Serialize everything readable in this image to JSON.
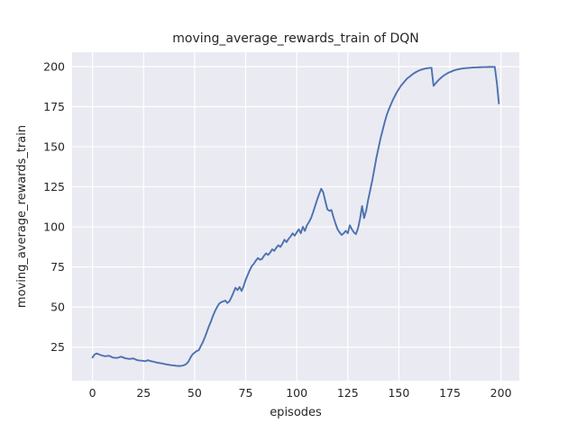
{
  "chart_data": {
    "type": "line",
    "title": "moving_average_rewards_train of DQN",
    "xlabel": "episodes",
    "ylabel": "moving_average_rewards_train",
    "xlim": [
      -10,
      209
    ],
    "ylim": [
      4,
      209
    ],
    "x_ticks": [
      0,
      25,
      50,
      75,
      100,
      125,
      150,
      175,
      200
    ],
    "y_ticks": [
      25,
      50,
      75,
      100,
      125,
      150,
      175,
      200
    ],
    "grid": true,
    "legend": "none",
    "style": "seaborn-darkgrid",
    "colors": {
      "line": "#4c72b0",
      "plot_background": "#eaeaf2",
      "grid": "#ffffff",
      "figure_background": "#ffffff",
      "text": "#262626"
    },
    "series": [
      {
        "name": "moving_average_rewards_train",
        "x_start": 0,
        "x_step": 1,
        "values": [
          18.5,
          20.3,
          21.0,
          20.5,
          20.0,
          19.6,
          19.3,
          19.4,
          19.6,
          19.0,
          18.4,
          18.3,
          18.2,
          18.6,
          19.0,
          18.5,
          18.0,
          17.8,
          17.6,
          17.7,
          17.9,
          17.3,
          16.8,
          16.6,
          16.5,
          16.3,
          16.2,
          16.8,
          16.4,
          16.1,
          15.8,
          15.5,
          15.2,
          15.0,
          14.8,
          14.5,
          14.2,
          14.0,
          13.8,
          13.6,
          13.5,
          13.3,
          13.2,
          13.2,
          13.4,
          13.8,
          14.5,
          16.0,
          18.5,
          20.5,
          21.5,
          22.5,
          23.0,
          25.5,
          28.0,
          31.0,
          34.5,
          38.0,
          41.0,
          44.5,
          47.5,
          50.0,
          52.0,
          53.0,
          53.5,
          54.0,
          52.5,
          53.5,
          56.0,
          59.0,
          62.0,
          60.5,
          62.5,
          60.0,
          63.0,
          67.0,
          70.0,
          73.0,
          75.5,
          77.0,
          79.0,
          80.5,
          79.5,
          80.0,
          82.0,
          83.5,
          82.5,
          84.0,
          86.0,
          85.0,
          87.0,
          88.5,
          87.5,
          89.5,
          92.0,
          90.5,
          92.5,
          94.0,
          96.0,
          94.5,
          96.5,
          98.5,
          96.0,
          100.0,
          97.5,
          101.0,
          103.0,
          105.5,
          109.0,
          113.0,
          117.0,
          120.5,
          123.8,
          121.5,
          116.0,
          111.0,
          110.0,
          110.5,
          106.0,
          102.0,
          98.5,
          96.5,
          95.0,
          96.0,
          97.5,
          96.0,
          101.0,
          98.5,
          96.5,
          95.5,
          99.0,
          105.0,
          113.0,
          105.5,
          110.0,
          117.0,
          123.0,
          129.0,
          136.0,
          143.0,
          149.0,
          155.0,
          160.0,
          165.0,
          169.5,
          173.0,
          176.0,
          179.0,
          181.5,
          184.0,
          186.0,
          188.0,
          189.5,
          191.0,
          192.5,
          193.5,
          194.5,
          195.5,
          196.3,
          197.0,
          197.6,
          198.1,
          198.5,
          198.8,
          199.0,
          199.2,
          199.3,
          188.0,
          189.5,
          191.0,
          192.3,
          193.4,
          194.4,
          195.2,
          196.0,
          196.6,
          197.1,
          197.6,
          198.0,
          198.3,
          198.6,
          198.8,
          199.0,
          199.1,
          199.2,
          199.3,
          199.4,
          199.5,
          199.5,
          199.6,
          199.6,
          199.7,
          199.7,
          199.7,
          199.8,
          199.8,
          199.8,
          199.8,
          190.0,
          177.0
        ]
      }
    ]
  }
}
